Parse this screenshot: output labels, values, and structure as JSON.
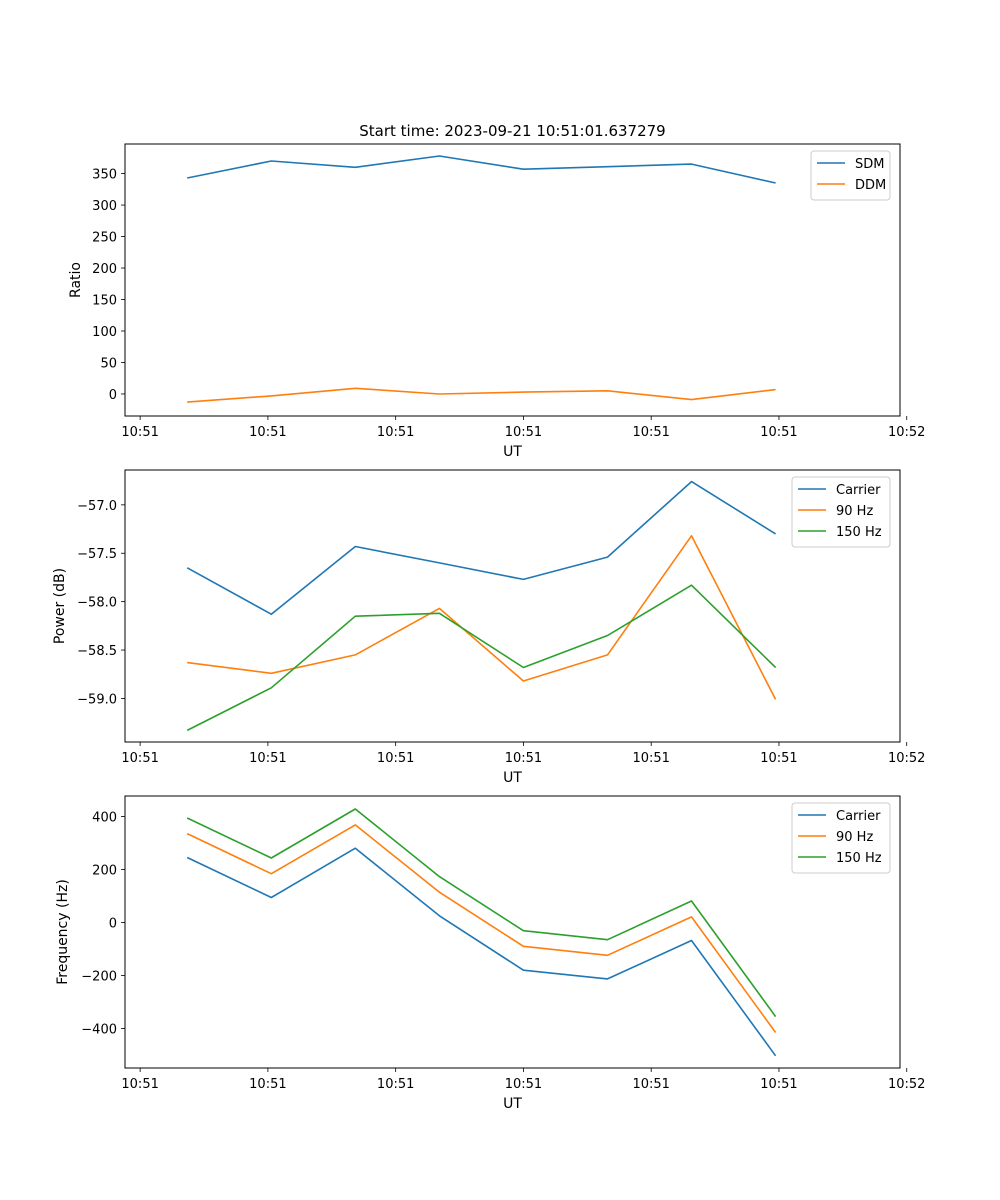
{
  "title": "Start time: 2023-09-21 10:51:01.637279",
  "colors": {
    "blue": "#1f77b4",
    "orange": "#ff7f0e",
    "green": "#2ca02c"
  },
  "chart_data": [
    {
      "type": "line",
      "xlabel": "UT",
      "ylabel": "Ratio",
      "x": [
        0.0,
        0.5,
        1.0,
        1.5,
        2.0,
        2.5,
        3.0,
        3.5
      ],
      "xlim": [
        -0.37,
        4.24
      ],
      "xtick_values": [
        -0.28,
        0.48,
        1.24,
        2.0,
        2.76,
        3.52,
        4.28
      ],
      "xtick_labels": [
        "10:51",
        "10:51",
        "10:51",
        "10:51",
        "10:51",
        "10:51",
        "10:52"
      ],
      "ylim": [
        -35,
        397
      ],
      "yticks": [
        0,
        50,
        100,
        150,
        200,
        250,
        300,
        350
      ],
      "series": [
        {
          "name": "SDM",
          "color": "#1f77b4",
          "values": [
            343,
            370,
            360,
            378,
            357,
            361,
            365,
            335
          ]
        },
        {
          "name": "DDM",
          "color": "#ff7f0e",
          "values": [
            -13,
            -3,
            9,
            0,
            3,
            5,
            -9,
            7
          ]
        }
      ],
      "legend": "upper right"
    },
    {
      "type": "line",
      "xlabel": "UT",
      "ylabel": "Power (dB)",
      "x": [
        0.0,
        0.5,
        1.0,
        1.5,
        2.0,
        2.5,
        3.0,
        3.5
      ],
      "xlim": [
        -0.37,
        4.24
      ],
      "xtick_values": [
        -0.28,
        0.48,
        1.24,
        2.0,
        2.76,
        3.52,
        4.28
      ],
      "xtick_labels": [
        "10:51",
        "10:51",
        "10:51",
        "10:51",
        "10:51",
        "10:51",
        "10:52"
      ],
      "ylim": [
        -59.45,
        -56.64
      ],
      "yticks": [
        -59.0,
        -58.5,
        -58.0,
        -57.5,
        -57.0
      ],
      "ytick_labels": [
        "−59.0",
        "−58.5",
        "−58.0",
        "−57.5",
        "−57.0"
      ],
      "series": [
        {
          "name": "Carrier",
          "color": "#1f77b4",
          "values": [
            -57.65,
            -58.13,
            -57.43,
            -57.6,
            -57.77,
            -57.54,
            -56.76,
            -57.3
          ]
        },
        {
          "name": "90 Hz",
          "color": "#ff7f0e",
          "values": [
            -58.63,
            -58.74,
            -58.55,
            -58.07,
            -58.82,
            -58.55,
            -57.32,
            -59.01
          ]
        },
        {
          "name": "150 Hz",
          "color": "#2ca02c",
          "values": [
            -59.33,
            -58.89,
            -58.15,
            -58.12,
            -58.68,
            -58.35,
            -57.83,
            -58.68
          ]
        }
      ],
      "legend": "upper right"
    },
    {
      "type": "line",
      "xlabel": "UT",
      "ylabel": "Frequency (Hz)",
      "x": [
        0.0,
        0.5,
        1.0,
        1.5,
        2.0,
        2.5,
        3.0,
        3.5
      ],
      "xlim": [
        -0.37,
        4.24
      ],
      "xtick_values": [
        -0.28,
        0.48,
        1.24,
        2.0,
        2.76,
        3.52,
        4.28
      ],
      "xtick_labels": [
        "10:51",
        "10:51",
        "10:51",
        "10:51",
        "10:51",
        "10:51",
        "10:52"
      ],
      "ylim": [
        -549,
        477
      ],
      "yticks": [
        -400,
        -200,
        0,
        200,
        400
      ],
      "ytick_labels": [
        "−400",
        "−200",
        "0",
        "200",
        "400"
      ],
      "series": [
        {
          "name": "Carrier",
          "color": "#1f77b4",
          "values": [
            245,
            94,
            280,
            25,
            -180,
            -213,
            -68,
            -503
          ]
        },
        {
          "name": "90 Hz",
          "color": "#ff7f0e",
          "values": [
            335,
            184,
            368,
            114,
            -90,
            -124,
            21,
            -415
          ]
        },
        {
          "name": "150 Hz",
          "color": "#2ca02c",
          "values": [
            394,
            243,
            428,
            173,
            -31,
            -65,
            81,
            -355
          ]
        }
      ],
      "legend": "upper right"
    }
  ]
}
